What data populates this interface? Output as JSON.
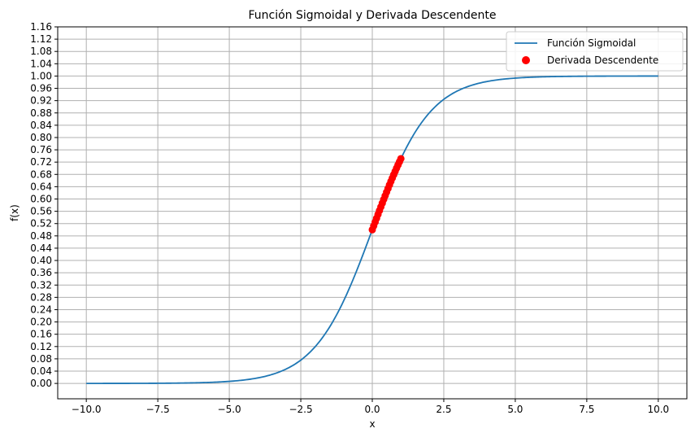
{
  "chart_data": {
    "type": "line",
    "title": "Función Sigmoidal y Derivada Descendente",
    "xlabel": "x",
    "ylabel": "f(x)",
    "xlim": [
      -11.0,
      11.0
    ],
    "ylim": [
      -0.05,
      1.16
    ],
    "x_ticks": [
      -10.0,
      -7.5,
      -5.0,
      -2.5,
      0.0,
      2.5,
      5.0,
      7.5,
      10.0
    ],
    "x_tick_labels": [
      "−10.0",
      "−7.5",
      "−5.0",
      "−2.5",
      "0.0",
      "2.5",
      "5.0",
      "7.5",
      "10.0"
    ],
    "y_ticks": [
      0.0,
      0.04,
      0.08,
      0.12,
      0.16,
      0.2,
      0.24,
      0.28,
      0.32,
      0.36,
      0.4,
      0.44,
      0.48,
      0.52,
      0.56,
      0.6,
      0.64,
      0.68,
      0.72,
      0.76,
      0.8,
      0.84,
      0.88,
      0.92,
      0.96,
      1.0,
      1.04,
      1.08,
      1.12,
      1.16
    ],
    "y_tick_labels": [
      "0.00",
      "0.04",
      "0.08",
      "0.12",
      "0.16",
      "0.20",
      "0.24",
      "0.28",
      "0.32",
      "0.36",
      "0.40",
      "0.44",
      "0.48",
      "0.52",
      "0.56",
      "0.60",
      "0.64",
      "0.68",
      "0.72",
      "0.76",
      "0.80",
      "0.84",
      "0.88",
      "0.92",
      "0.96",
      "1.00",
      "1.04",
      "1.08",
      "1.12",
      "1.16"
    ],
    "grid": true,
    "legend_position": "top-right",
    "series": [
      {
        "name": "Función Sigmoidal",
        "kind": "line",
        "color": "#1f77b4",
        "x": [
          -10.0,
          -9.0,
          -8.0,
          -7.0,
          -6.0,
          -5.0,
          -4.5,
          -4.0,
          -3.5,
          -3.0,
          -2.5,
          -2.0,
          -1.5,
          -1.0,
          -0.5,
          0.0,
          0.5,
          1.0,
          1.5,
          2.0,
          2.5,
          3.0,
          3.5,
          4.0,
          4.5,
          5.0,
          6.0,
          7.0,
          8.0,
          9.0,
          10.0
        ],
        "y": [
          0.0,
          0.0001,
          0.0003,
          0.0009,
          0.0025,
          0.0067,
          0.011,
          0.018,
          0.0293,
          0.0474,
          0.0759,
          0.1192,
          0.1824,
          0.2689,
          0.3775,
          0.5,
          0.6225,
          0.7311,
          0.8176,
          0.8808,
          0.9241,
          0.9526,
          0.9707,
          0.982,
          0.989,
          0.9933,
          0.9975,
          0.9991,
          0.9997,
          0.9999,
          1.0
        ]
      },
      {
        "name": "Derivada Descendente",
        "kind": "scatter",
        "color": "#ff0000",
        "x": [
          0.0,
          0.05,
          0.1,
          0.15,
          0.2,
          0.25,
          0.3,
          0.35,
          0.4,
          0.45,
          0.5,
          0.55,
          0.6,
          0.65,
          0.7,
          0.75,
          0.8,
          0.85,
          0.9,
          0.95,
          1.0
        ],
        "y": [
          0.5,
          0.5125,
          0.525,
          0.5374,
          0.5498,
          0.5622,
          0.5744,
          0.5866,
          0.5987,
          0.6106,
          0.6225,
          0.6341,
          0.6457,
          0.657,
          0.6682,
          0.6792,
          0.69,
          0.7006,
          0.7109,
          0.7211,
          0.7311
        ]
      }
    ]
  }
}
